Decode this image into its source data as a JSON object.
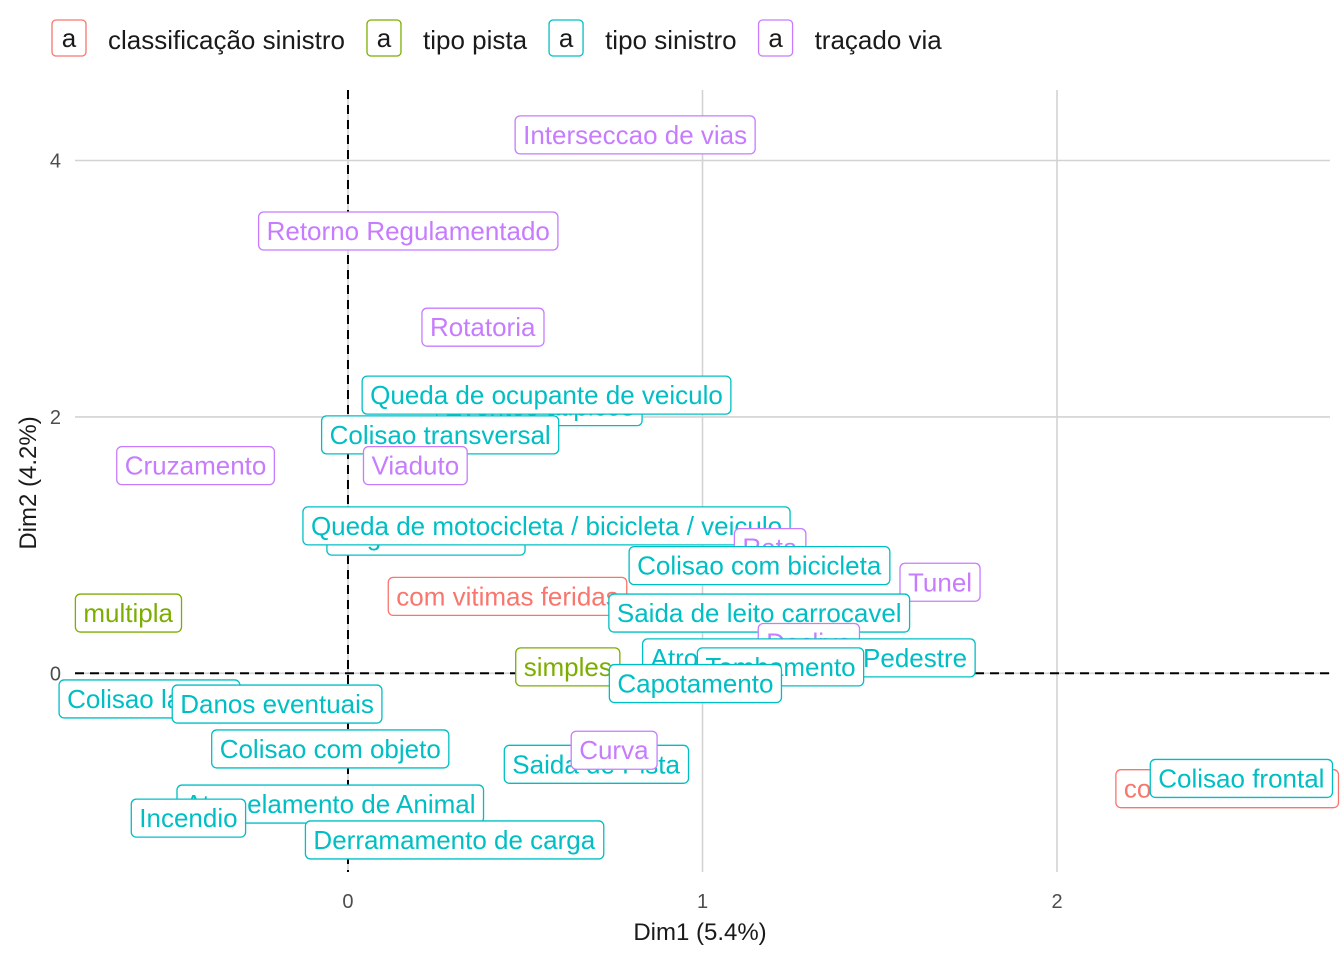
{
  "chart_data": {
    "type": "scatter",
    "xlabel": "Dim1 (5.4%)",
    "ylabel": "Dim2 (4.2%)",
    "xlim": [
      -0.77,
      2.77
    ],
    "ylim": [
      -1.55,
      4.55
    ],
    "x_ticks": [
      "0",
      "1",
      "2"
    ],
    "y_ticks": [
      "0",
      "2",
      "4"
    ],
    "grid": true,
    "reference_lines": {
      "x": 0,
      "y": 0,
      "style": "dashed"
    },
    "legend_position": "top",
    "legend": [
      {
        "key": "classificacao",
        "name": "classificação sinistro",
        "glyph": "a",
        "color": "#F8766D"
      },
      {
        "key": "pista",
        "name": "tipo pista",
        "glyph": "a",
        "color": "#7CAE00"
      },
      {
        "key": "sinistro",
        "name": "tipo sinistro",
        "glyph": "a",
        "color": "#00BFC4"
      },
      {
        "key": "tracado",
        "name": "traçado via",
        "glyph": "a",
        "color": "#C77CFF"
      }
    ],
    "points": [
      {
        "label": "Interseccao de vias",
        "group": "tracado",
        "x": 0.81,
        "y": 4.2
      },
      {
        "label": "Retorno Regulamentado",
        "group": "tracado",
        "x": 0.17,
        "y": 3.45
      },
      {
        "label": "Rotatoria",
        "group": "tracado",
        "x": 0.38,
        "y": 2.7
      },
      {
        "label": "Eventos atipicos",
        "group": "sinistro",
        "x": 0.54,
        "y": 2.08
      },
      {
        "label": "Queda de ocupante de veiculo",
        "group": "sinistro",
        "x": 0.56,
        "y": 2.17
      },
      {
        "label": "Colisao transversal",
        "group": "sinistro",
        "x": 0.26,
        "y": 1.86
      },
      {
        "label": "Cruzamento",
        "group": "tracado",
        "x": -0.43,
        "y": 1.62
      },
      {
        "label": "Viaduto",
        "group": "tracado",
        "x": 0.19,
        "y": 1.62
      },
      {
        "label": "Engavetamento",
        "group": "sinistro",
        "x": 0.22,
        "y": 1.07
      },
      {
        "label": "Queda de motocicleta / bicicleta / veiculo",
        "group": "sinistro",
        "x": 0.56,
        "y": 1.15
      },
      {
        "label": "Reta",
        "group": "tracado",
        "x": 1.19,
        "y": 0.98
      },
      {
        "label": "Colisao com bicicleta",
        "group": "sinistro",
        "x": 1.16,
        "y": 0.84
      },
      {
        "label": "Tunel",
        "group": "tracado",
        "x": 1.67,
        "y": 0.71
      },
      {
        "label": "com vitimas feridas",
        "group": "classificacao",
        "x": 0.45,
        "y": 0.6
      },
      {
        "label": "multipla",
        "group": "pista",
        "x": -0.62,
        "y": 0.47
      },
      {
        "label": "Saida de leito carrocavel",
        "group": "sinistro",
        "x": 1.16,
        "y": 0.47
      },
      {
        "label": "Declive",
        "group": "tracado",
        "x": 1.3,
        "y": 0.24
      },
      {
        "label": "Atropelamento de Pedestre",
        "group": "sinistro",
        "x": 1.3,
        "y": 0.12
      },
      {
        "label": "simples",
        "group": "pista",
        "x": 0.62,
        "y": 0.05
      },
      {
        "label": "Tombamento",
        "group": "sinistro",
        "x": 1.22,
        "y": 0.05
      },
      {
        "label": "Capotamento",
        "group": "sinistro",
        "x": 0.98,
        "y": -0.08
      },
      {
        "label": "Colisao lateral",
        "group": "sinistro",
        "x": -0.56,
        "y": -0.2
      },
      {
        "label": "Danos eventuais",
        "group": "sinistro",
        "x": -0.2,
        "y": -0.24
      },
      {
        "label": "Colisao com objeto",
        "group": "sinistro",
        "x": -0.05,
        "y": -0.59
      },
      {
        "label": "Saida de Pista",
        "group": "sinistro",
        "x": 0.7,
        "y": -0.71
      },
      {
        "label": "Curva",
        "group": "tracado",
        "x": 0.75,
        "y": -0.6
      },
      {
        "label": "com vitimas fatais",
        "group": "classificacao",
        "x": 2.48,
        "y": -0.9
      },
      {
        "label": "Colisao frontal",
        "group": "sinistro",
        "x": 2.52,
        "y": -0.82
      },
      {
        "label": "Atropelamento de Animal",
        "group": "sinistro",
        "x": -0.05,
        "y": -1.02
      },
      {
        "label": "Incendio",
        "group": "sinistro",
        "x": -0.45,
        "y": -1.13
      },
      {
        "label": "Derramamento de carga",
        "group": "sinistro",
        "x": 0.3,
        "y": -1.3
      }
    ]
  }
}
